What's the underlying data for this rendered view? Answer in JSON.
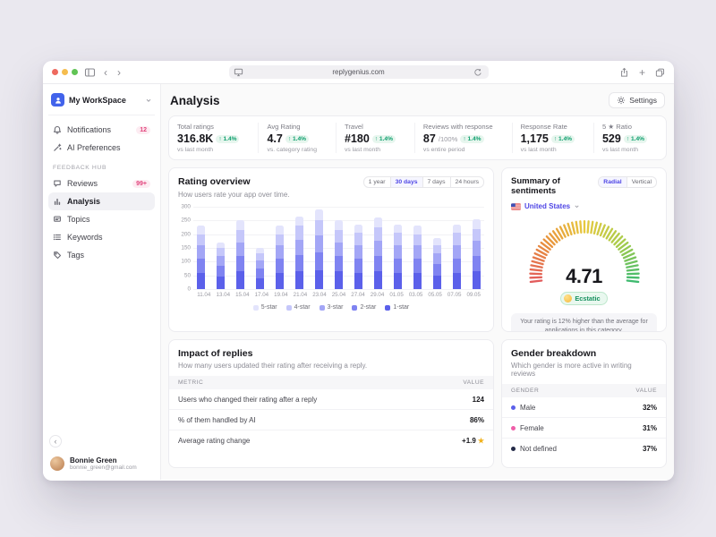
{
  "theme": {
    "accent": "#4f46e5",
    "positive_text": "#0e9f6e",
    "positive_bg": "#e7f6ee",
    "badge_text": "#e1447c",
    "badge_bg": "#fdecf2",
    "page_bg": "#eae8ef"
  },
  "browser": {
    "url": "replygenius.com",
    "back_glyph": "‹",
    "forward_glyph": "›",
    "plus_glyph": "+"
  },
  "sidebar": {
    "workspace": {
      "name": "My WorkSpace"
    },
    "items_top": [
      {
        "label": "Notifications",
        "icon": "bell-icon",
        "badge": "12"
      },
      {
        "label": "AI Preferences",
        "icon": "wand-icon"
      }
    ],
    "section_label": "FEEDBACK HUB",
    "items_hub": [
      {
        "label": "Reviews",
        "icon": "chat-icon",
        "badge": "99+"
      },
      {
        "label": "Analysis",
        "icon": "bar-chart-icon",
        "active": true
      },
      {
        "label": "Topics",
        "icon": "topics-icon"
      },
      {
        "label": "Keywords",
        "icon": "keywords-icon"
      },
      {
        "label": "Tags",
        "icon": "tag-icon"
      }
    ],
    "collapse_glyph": "‹",
    "user": {
      "name": "Bonnie Green",
      "email": "bonnie_green@gmail.com"
    }
  },
  "header": {
    "title": "Analysis",
    "settings_label": "Settings"
  },
  "stats": [
    {
      "label": "Total ratings",
      "value": "316.8K",
      "delta": "↑ 1.4%",
      "sub": "vs last month"
    },
    {
      "label": "Avg Rating",
      "value": "4.7",
      "delta": "↑ 1.4%",
      "sub": "vs. category rating"
    },
    {
      "label": "Travel",
      "value": "#180",
      "delta": "↑ 1.4%",
      "sub": "vs last month"
    },
    {
      "label": "Reviews with response",
      "value": "87",
      "suffix": "/100%",
      "delta": "↑ 1.4%",
      "sub": "vs entire period"
    },
    {
      "label": "Response Rate",
      "value": "1,175",
      "delta": "↑ 1.4%",
      "sub": "vs last month"
    },
    {
      "label": "5 ★ Ratio",
      "value": "529",
      "delta": "↑ 1.4%",
      "sub": "vs last month"
    }
  ],
  "rating_overview": {
    "title": "Rating overview",
    "subtitle": "How users rate your app over time.",
    "ranges": [
      "1 year",
      "30 days",
      "7 days",
      "24 hours"
    ],
    "active_range": "30 days"
  },
  "sentiments": {
    "title": "Summary of sentiments",
    "toggle": [
      "Radial",
      "Vertical"
    ],
    "active_toggle": "Radial",
    "country": "United States"
  },
  "impact": {
    "title": "Impact of replies",
    "subtitle": "How many users updated their rating after receiving a reply.",
    "columns": [
      "METRIC",
      "VALUE"
    ],
    "rows": [
      {
        "metric": "Users who changed their rating after a reply",
        "value": "124"
      },
      {
        "metric": "% of them handled by AI",
        "value": "86%"
      },
      {
        "metric": "Average rating change",
        "value": "+1.9",
        "star": "★"
      }
    ]
  },
  "gender": {
    "title": "Gender breakdown",
    "subtitle": "Which gender is more active in writing reviews",
    "columns": [
      "GENDER",
      "VALUE"
    ],
    "rows": [
      {
        "label": "Male",
        "color": "#5b60ea",
        "value": "32%"
      },
      {
        "label": "Female",
        "color": "#ef5da8",
        "value": "31%"
      },
      {
        "label": "Not defined",
        "color": "#232a47",
        "value": "37%"
      }
    ]
  },
  "chart_data": [
    {
      "type": "bar",
      "stacked": true,
      "title": "Rating overview",
      "xlabel": "",
      "ylabel": "",
      "categories": [
        "11.04",
        "13.04",
        "15.04",
        "17.04",
        "19.04",
        "21.04",
        "23.04",
        "25.04",
        "27.04",
        "29.04",
        "01.05",
        "03.05",
        "05.05",
        "07.05",
        "09.05"
      ],
      "series": [
        {
          "name": "5-star",
          "color": "#e3e4fc",
          "values": [
            30,
            20,
            35,
            20,
            30,
            35,
            40,
            35,
            30,
            35,
            30,
            30,
            25,
            30,
            35
          ]
        },
        {
          "name": "4-star",
          "color": "#c5c7fa",
          "values": [
            40,
            30,
            45,
            25,
            40,
            50,
            55,
            45,
            45,
            50,
            45,
            40,
            30,
            45,
            45
          ]
        },
        {
          "name": "3-star",
          "color": "#a3a6f6",
          "values": [
            50,
            35,
            50,
            30,
            50,
            55,
            60,
            50,
            50,
            55,
            50,
            50,
            40,
            50,
            55
          ]
        },
        {
          "name": "2-star",
          "color": "#7f83f1",
          "values": [
            50,
            40,
            55,
            35,
            50,
            60,
            65,
            55,
            50,
            55,
            50,
            50,
            40,
            50,
            55
          ]
        },
        {
          "name": "1-star",
          "color": "#5b60ea",
          "values": [
            60,
            45,
            65,
            40,
            60,
            65,
            70,
            65,
            60,
            65,
            60,
            60,
            50,
            60,
            65
          ]
        }
      ],
      "ylim": [
        0,
        300
      ],
      "yticks": [
        0,
        50,
        100,
        150,
        200,
        250,
        300
      ],
      "grid": true,
      "legend_position": "bottom"
    },
    {
      "type": "gauge",
      "value": "4.71",
      "label": "Ecstatic",
      "min": 0,
      "max": 5,
      "colors": [
        "#e25c5c",
        "#e8923c",
        "#e7c93f",
        "#a8cc4a",
        "#3fba6f"
      ],
      "note": "Your rating is 12% higher than the average for applications in this category."
    }
  ]
}
